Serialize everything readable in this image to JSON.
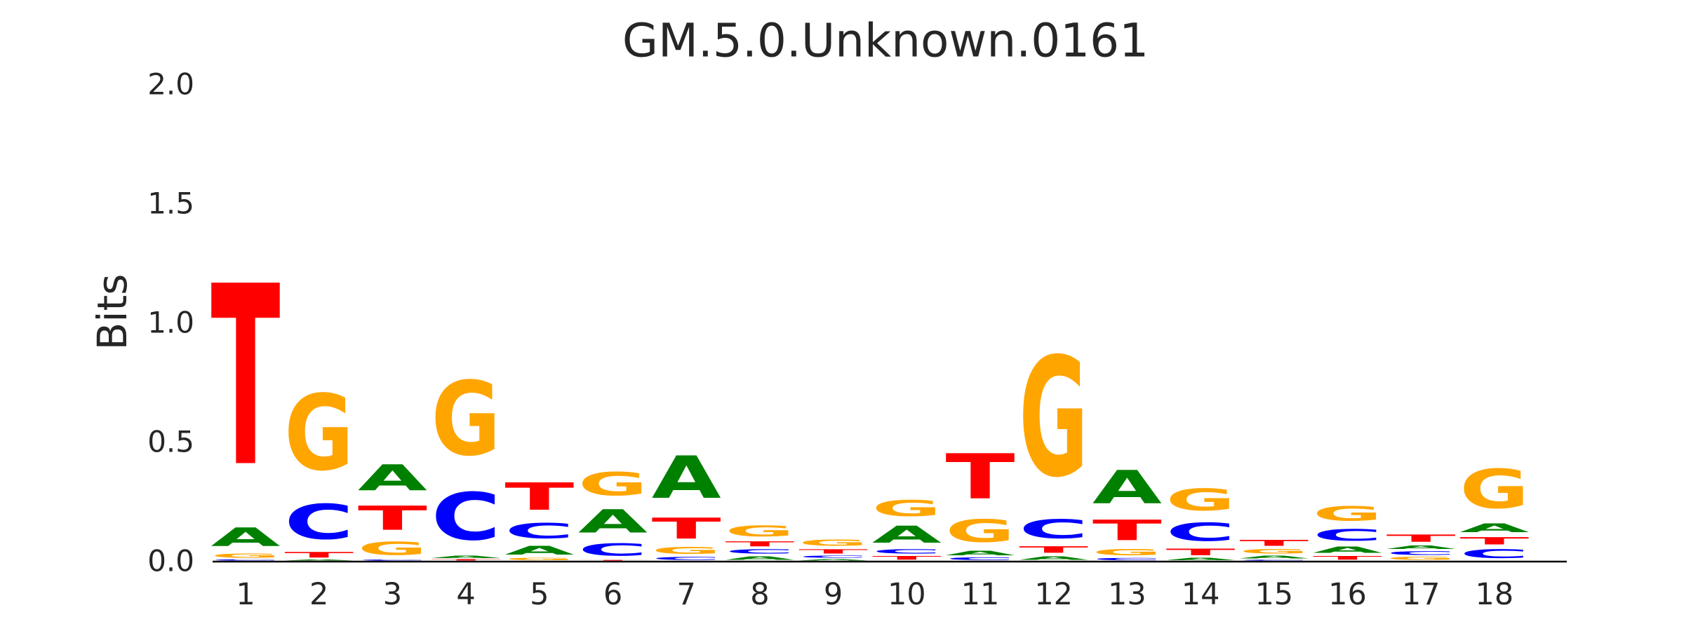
{
  "page": {
    "background_color": "#ffffff",
    "text_color": "#262626"
  },
  "chart_data": {
    "type": "bar",
    "subtype": "sequence_logo",
    "title": "GM.5.0.Unknown.0161",
    "xlabel": "",
    "ylabel": "Bits",
    "unit": "bits",
    "ylim": [
      0,
      2.0
    ],
    "ytick_labels": [
      "0.0",
      "0.5",
      "1.0",
      "1.5",
      "2.0"
    ],
    "ytick_values": [
      0.0,
      0.5,
      1.0,
      1.5,
      2.0
    ],
    "grid": false,
    "legend": false,
    "categories": [
      "1",
      "2",
      "3",
      "4",
      "5",
      "6",
      "7",
      "8",
      "9",
      "10",
      "11",
      "12",
      "13",
      "14",
      "15",
      "16",
      "17",
      "18"
    ],
    "letter_colors": {
      "A": "#008000",
      "C": "#0000FF",
      "G": "#FFA500",
      "T": "#FF0000"
    },
    "stacks": [
      {
        "position": "1",
        "letters": [
          {
            "letter": "C",
            "bits": 0.008
          },
          {
            "letter": "G",
            "bits": 0.028
          },
          {
            "letter": "A",
            "bits": 0.125
          },
          {
            "letter": "T",
            "bits": 1.215
          }
        ]
      },
      {
        "position": "2",
        "letters": [
          {
            "letter": "A",
            "bits": 0.006
          },
          {
            "letter": "T",
            "bits": 0.038
          },
          {
            "letter": "C",
            "bits": 0.236
          },
          {
            "letter": "G",
            "bits": 0.51
          }
        ]
      },
      {
        "position": "3",
        "letters": [
          {
            "letter": "C",
            "bits": 0.007
          },
          {
            "letter": "G",
            "bits": 0.09
          },
          {
            "letter": "T",
            "bits": 0.163
          },
          {
            "letter": "A",
            "bits": 0.175
          }
        ]
      },
      {
        "position": "4",
        "letters": [
          {
            "letter": "T",
            "bits": 0.009
          },
          {
            "letter": "A",
            "bits": 0.015
          },
          {
            "letter": "C",
            "bits": 0.32
          },
          {
            "letter": "G",
            "bits": 0.5
          }
        ]
      },
      {
        "position": "5",
        "letters": [
          {
            "letter": "G",
            "bits": 0.015
          },
          {
            "letter": "A",
            "bits": 0.059
          },
          {
            "letter": "C",
            "bits": 0.103
          },
          {
            "letter": "T",
            "bits": 0.184
          }
        ]
      },
      {
        "position": "6",
        "letters": [
          {
            "letter": "T",
            "bits": 0.005
          },
          {
            "letter": "C",
            "bits": 0.083
          },
          {
            "letter": "A",
            "bits": 0.155
          },
          {
            "letter": "G",
            "bits": 0.155
          }
        ]
      },
      {
        "position": "7",
        "letters": [
          {
            "letter": "C",
            "bits": 0.02
          },
          {
            "letter": "G",
            "bits": 0.045
          },
          {
            "letter": "T",
            "bits": 0.141
          },
          {
            "letter": "A",
            "bits": 0.285
          }
        ]
      },
      {
        "position": "8",
        "letters": [
          {
            "letter": "A",
            "bits": 0.025
          },
          {
            "letter": "C",
            "bits": 0.029
          },
          {
            "letter": "T",
            "bits": 0.034
          },
          {
            "letter": "G",
            "bits": 0.074
          }
        ]
      },
      {
        "position": "9",
        "letters": [
          {
            "letter": "A",
            "bits": 0.01
          },
          {
            "letter": "C",
            "bits": 0.015
          },
          {
            "letter": "T",
            "bits": 0.029
          },
          {
            "letter": "G",
            "bits": 0.044
          }
        ]
      },
      {
        "position": "10",
        "letters": [
          {
            "letter": "T",
            "bits": 0.025
          },
          {
            "letter": "C",
            "bits": 0.029
          },
          {
            "letter": "A",
            "bits": 0.113
          },
          {
            "letter": "G",
            "bits": 0.107
          }
        ]
      },
      {
        "position": "11",
        "letters": [
          {
            "letter": "C",
            "bits": 0.018
          },
          {
            "letter": "A",
            "bits": 0.03
          },
          {
            "letter": "G",
            "bits": 0.152
          },
          {
            "letter": "T",
            "bits": 0.304
          }
        ]
      },
      {
        "position": "12",
        "letters": [
          {
            "letter": "A",
            "bits": 0.025
          },
          {
            "letter": "T",
            "bits": 0.044
          },
          {
            "letter": "C",
            "bits": 0.128
          },
          {
            "letter": "G",
            "bits": 0.803
          }
        ]
      },
      {
        "position": "13",
        "letters": [
          {
            "letter": "C",
            "bits": 0.015
          },
          {
            "letter": "G",
            "bits": 0.044
          },
          {
            "letter": "T",
            "bits": 0.138
          },
          {
            "letter": "A",
            "bits": 0.223
          }
        ]
      },
      {
        "position": "14",
        "letters": [
          {
            "letter": "A",
            "bits": 0.015
          },
          {
            "letter": "T",
            "bits": 0.044
          },
          {
            "letter": "C",
            "bits": 0.123
          },
          {
            "letter": "G",
            "bits": 0.147
          }
        ]
      },
      {
        "position": "15",
        "letters": [
          {
            "letter": "C",
            "bits": 0.006
          },
          {
            "letter": "A",
            "bits": 0.019
          },
          {
            "letter": "G",
            "bits": 0.03
          },
          {
            "letter": "T",
            "bits": 0.04
          }
        ]
      },
      {
        "position": "16",
        "letters": [
          {
            "letter": "T",
            "bits": 0.025
          },
          {
            "letter": "A",
            "bits": 0.044
          },
          {
            "letter": "C",
            "bits": 0.078
          },
          {
            "letter": "G",
            "bits": 0.098
          }
        ]
      },
      {
        "position": "17",
        "letters": [
          {
            "letter": "G",
            "bits": 0.02
          },
          {
            "letter": "C",
            "bits": 0.025
          },
          {
            "letter": "A",
            "bits": 0.025
          },
          {
            "letter": "T",
            "bits": 0.049
          }
        ]
      },
      {
        "position": "18",
        "letters": [
          {
            "letter": "C",
            "bits": 0.059
          },
          {
            "letter": "T",
            "bits": 0.049
          },
          {
            "letter": "A",
            "bits": 0.059
          },
          {
            "letter": "G",
            "bits": 0.265
          }
        ]
      }
    ]
  }
}
